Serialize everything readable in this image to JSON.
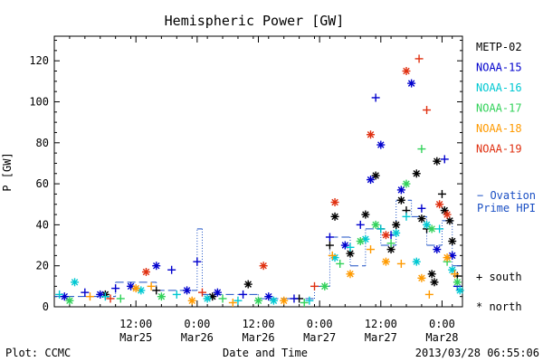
{
  "chart_data": {
    "type": "scatter",
    "title": "Hemispheric Power [GW]",
    "ylabel": "P [GW]",
    "xlabel": "Date and Time",
    "xlim": [
      "2013-03-24T20:00",
      "2013-03-28T04:00"
    ],
    "ylim": [
      0,
      132
    ],
    "yticks": [
      0,
      20,
      40,
      60,
      80,
      100,
      120
    ],
    "xticks": [
      {
        "t": "2013-03-25T12:00",
        "line1": "12:00",
        "line2": "Mar25"
      },
      {
        "t": "2013-03-26T00:00",
        "line1": "0:00",
        "line2": "Mar26"
      },
      {
        "t": "2013-03-26T12:00",
        "line1": "12:00",
        "line2": "Mar26"
      },
      {
        "t": "2013-03-27T00:00",
        "line1": "0:00",
        "line2": "Mar27"
      },
      {
        "t": "2013-03-27T12:00",
        "line1": "12:00",
        "line2": "Mar27"
      },
      {
        "t": "2013-03-28T00:00",
        "line1": "0:00",
        "line2": "Mar28"
      }
    ],
    "grid": false,
    "legend_position": "right",
    "legend_markers": {
      "south": "+ south",
      "north": "* north"
    },
    "ovation_legend": [
      "− Ovation",
      "Prime HPI"
    ],
    "footer_left": "Plot: CCMC",
    "footer_right": "2013/03/28 06:55:06",
    "series": [
      {
        "name": "METP-02",
        "color": "#000000",
        "points": [
          {
            "t": "2013-03-25T06:00",
            "v": 6,
            "m": "north"
          },
          {
            "t": "2013-03-25T16:00",
            "v": 8,
            "m": "south"
          },
          {
            "t": "2013-03-26T03:00",
            "v": 5,
            "m": "north"
          },
          {
            "t": "2013-03-26T10:00",
            "v": 11,
            "m": "north"
          },
          {
            "t": "2013-03-26T20:00",
            "v": 4,
            "m": "south"
          },
          {
            "t": "2013-03-27T02:00",
            "v": 30,
            "m": "south"
          },
          {
            "t": "2013-03-27T03:00",
            "v": 44,
            "m": "north"
          },
          {
            "t": "2013-03-27T06:00",
            "v": 26,
            "m": "north"
          },
          {
            "t": "2013-03-27T09:00",
            "v": 45,
            "m": "north"
          },
          {
            "t": "2013-03-27T11:00",
            "v": 64,
            "m": "north"
          },
          {
            "t": "2013-03-27T12:00",
            "v": 38,
            "m": "south"
          },
          {
            "t": "2013-03-27T14:00",
            "v": 28,
            "m": "north"
          },
          {
            "t": "2013-03-27T15:00",
            "v": 40,
            "m": "north"
          },
          {
            "t": "2013-03-27T16:00",
            "v": 52,
            "m": "north"
          },
          {
            "t": "2013-03-27T17:00",
            "v": 47,
            "m": "south"
          },
          {
            "t": "2013-03-27T19:00",
            "v": 65,
            "m": "north"
          },
          {
            "t": "2013-03-27T20:00",
            "v": 43,
            "m": "north"
          },
          {
            "t": "2013-03-27T21:00",
            "v": 38,
            "m": "south"
          },
          {
            "t": "2013-03-27T22:00",
            "v": 16,
            "m": "north"
          },
          {
            "t": "2013-03-27T22:30",
            "v": 12,
            "m": "north"
          },
          {
            "t": "2013-03-27T23:00",
            "v": 71,
            "m": "north"
          },
          {
            "t": "2013-03-28T00:00",
            "v": 55,
            "m": "south"
          },
          {
            "t": "2013-03-28T00:30",
            "v": 47,
            "m": "north"
          },
          {
            "t": "2013-03-28T01:30",
            "v": 42,
            "m": "north"
          },
          {
            "t": "2013-03-28T02:00",
            "v": 32,
            "m": "north"
          },
          {
            "t": "2013-03-28T03:00",
            "v": 15,
            "m": "south"
          }
        ]
      },
      {
        "name": "NOAA-15",
        "color": "#0000cd",
        "points": [
          {
            "t": "2013-03-24T22:00",
            "v": 5,
            "m": "north"
          },
          {
            "t": "2013-03-25T02:00",
            "v": 7,
            "m": "south"
          },
          {
            "t": "2013-03-25T05:00",
            "v": 6,
            "m": "north"
          },
          {
            "t": "2013-03-25T08:00",
            "v": 9,
            "m": "south"
          },
          {
            "t": "2013-03-25T11:00",
            "v": 10,
            "m": "north"
          },
          {
            "t": "2013-03-25T16:00",
            "v": 20,
            "m": "north"
          },
          {
            "t": "2013-03-25T19:00",
            "v": 18,
            "m": "south"
          },
          {
            "t": "2013-03-25T22:00",
            "v": 8,
            "m": "north"
          },
          {
            "t": "2013-03-26T00:00",
            "v": 22,
            "m": "south"
          },
          {
            "t": "2013-03-26T04:00",
            "v": 7,
            "m": "north"
          },
          {
            "t": "2013-03-26T09:00",
            "v": 6,
            "m": "south"
          },
          {
            "t": "2013-03-26T14:00",
            "v": 5,
            "m": "north"
          },
          {
            "t": "2013-03-26T19:00",
            "v": 4,
            "m": "south"
          },
          {
            "t": "2013-03-27T02:00",
            "v": 34,
            "m": "south"
          },
          {
            "t": "2013-03-27T05:00",
            "v": 30,
            "m": "north"
          },
          {
            "t": "2013-03-27T08:00",
            "v": 40,
            "m": "south"
          },
          {
            "t": "2013-03-27T10:00",
            "v": 62,
            "m": "north"
          },
          {
            "t": "2013-03-27T11:00",
            "v": 102,
            "m": "south"
          },
          {
            "t": "2013-03-27T12:00",
            "v": 79,
            "m": "north"
          },
          {
            "t": "2013-03-27T14:00",
            "v": 35,
            "m": "south"
          },
          {
            "t": "2013-03-27T16:00",
            "v": 57,
            "m": "north"
          },
          {
            "t": "2013-03-27T18:00",
            "v": 109,
            "m": "north"
          },
          {
            "t": "2013-03-27T20:00",
            "v": 48,
            "m": "south"
          },
          {
            "t": "2013-03-27T23:00",
            "v": 28,
            "m": "north"
          },
          {
            "t": "2013-03-28T00:30",
            "v": 72,
            "m": "south"
          },
          {
            "t": "2013-03-28T02:00",
            "v": 25,
            "m": "north"
          },
          {
            "t": "2013-03-28T03:00",
            "v": 10,
            "m": "south"
          }
        ]
      },
      {
        "name": "NOAA-16",
        "color": "#00c8d2",
        "points": [
          {
            "t": "2013-03-24T21:00",
            "v": 6,
            "m": "south"
          },
          {
            "t": "2013-03-25T00:00",
            "v": 12,
            "m": "north"
          },
          {
            "t": "2013-03-25T06:00",
            "v": 5,
            "m": "south"
          },
          {
            "t": "2013-03-25T13:00",
            "v": 8,
            "m": "north"
          },
          {
            "t": "2013-03-25T20:00",
            "v": 6,
            "m": "south"
          },
          {
            "t": "2013-03-26T02:00",
            "v": 4,
            "m": "north"
          },
          {
            "t": "2013-03-26T08:00",
            "v": 3,
            "m": "south"
          },
          {
            "t": "2013-03-26T15:00",
            "v": 3,
            "m": "north"
          },
          {
            "t": "2013-03-26T22:00",
            "v": 3,
            "m": "south"
          },
          {
            "t": "2013-03-27T03:00",
            "v": 24,
            "m": "north"
          },
          {
            "t": "2013-03-27T06:00",
            "v": 29,
            "m": "south"
          },
          {
            "t": "2013-03-27T09:00",
            "v": 33,
            "m": "north"
          },
          {
            "t": "2013-03-27T12:00",
            "v": 38,
            "m": "south"
          },
          {
            "t": "2013-03-27T15:00",
            "v": 36,
            "m": "north"
          },
          {
            "t": "2013-03-27T17:00",
            "v": 44,
            "m": "south"
          },
          {
            "t": "2013-03-27T19:00",
            "v": 22,
            "m": "north"
          },
          {
            "t": "2013-03-27T21:00",
            "v": 40,
            "m": "north"
          },
          {
            "t": "2013-03-27T23:30",
            "v": 38,
            "m": "south"
          },
          {
            "t": "2013-03-28T02:00",
            "v": 18,
            "m": "north"
          },
          {
            "t": "2013-03-28T03:30",
            "v": 8,
            "m": "north"
          }
        ]
      },
      {
        "name": "NOAA-17",
        "color": "#32d25a",
        "points": [
          {
            "t": "2013-03-24T23:00",
            "v": 3,
            "m": "north"
          },
          {
            "t": "2013-03-25T09:00",
            "v": 4,
            "m": "south"
          },
          {
            "t": "2013-03-25T17:00",
            "v": 5,
            "m": "north"
          },
          {
            "t": "2013-03-26T05:00",
            "v": 4,
            "m": "south"
          },
          {
            "t": "2013-03-26T12:00",
            "v": 3,
            "m": "north"
          },
          {
            "t": "2013-03-26T21:00",
            "v": 2,
            "m": "south"
          },
          {
            "t": "2013-03-27T01:00",
            "v": 10,
            "m": "north"
          },
          {
            "t": "2013-03-27T04:00",
            "v": 21,
            "m": "south"
          },
          {
            "t": "2013-03-27T08:00",
            "v": 32,
            "m": "north"
          },
          {
            "t": "2013-03-27T11:00",
            "v": 40,
            "m": "north"
          },
          {
            "t": "2013-03-27T14:00",
            "v": 31,
            "m": "south"
          },
          {
            "t": "2013-03-27T17:00",
            "v": 60,
            "m": "north"
          },
          {
            "t": "2013-03-27T20:00",
            "v": 77,
            "m": "south"
          },
          {
            "t": "2013-03-27T22:00",
            "v": 38,
            "m": "north"
          },
          {
            "t": "2013-03-28T01:00",
            "v": 22,
            "m": "south"
          },
          {
            "t": "2013-03-28T03:00",
            "v": 12,
            "m": "north"
          }
        ]
      },
      {
        "name": "NOAA-18",
        "color": "#ff9a00",
        "points": [
          {
            "t": "2013-03-25T03:00",
            "v": 5,
            "m": "south"
          },
          {
            "t": "2013-03-25T12:00",
            "v": 9,
            "m": "north"
          },
          {
            "t": "2013-03-25T15:00",
            "v": 10,
            "m": "south"
          },
          {
            "t": "2013-03-25T23:00",
            "v": 3,
            "m": "north"
          },
          {
            "t": "2013-03-26T07:00",
            "v": 2,
            "m": "south"
          },
          {
            "t": "2013-03-26T17:00",
            "v": 3,
            "m": "north"
          },
          {
            "t": "2013-03-27T02:30",
            "v": 25,
            "m": "south"
          },
          {
            "t": "2013-03-27T06:00",
            "v": 16,
            "m": "north"
          },
          {
            "t": "2013-03-27T10:00",
            "v": 28,
            "m": "south"
          },
          {
            "t": "2013-03-27T13:00",
            "v": 22,
            "m": "north"
          },
          {
            "t": "2013-03-27T16:00",
            "v": 21,
            "m": "south"
          },
          {
            "t": "2013-03-27T20:00",
            "v": 14,
            "m": "north"
          },
          {
            "t": "2013-03-27T21:30",
            "v": 6,
            "m": "south"
          },
          {
            "t": "2013-03-28T01:00",
            "v": 24,
            "m": "north"
          },
          {
            "t": "2013-03-28T02:30",
            "v": 16,
            "m": "south"
          }
        ]
      },
      {
        "name": "NOAA-19",
        "color": "#e03010",
        "points": [
          {
            "t": "2013-03-25T07:00",
            "v": 4,
            "m": "south"
          },
          {
            "t": "2013-03-25T14:00",
            "v": 17,
            "m": "north"
          },
          {
            "t": "2013-03-26T01:00",
            "v": 7,
            "m": "south"
          },
          {
            "t": "2013-03-26T13:00",
            "v": 20,
            "m": "north"
          },
          {
            "t": "2013-03-26T23:00",
            "v": 10,
            "m": "south"
          },
          {
            "t": "2013-03-27T03:00",
            "v": 51,
            "m": "north"
          },
          {
            "t": "2013-03-27T10:00",
            "v": 84,
            "m": "north"
          },
          {
            "t": "2013-03-27T13:00",
            "v": 35,
            "m": "north"
          },
          {
            "t": "2013-03-27T17:00",
            "v": 115,
            "m": "north"
          },
          {
            "t": "2013-03-27T19:30",
            "v": 121,
            "m": "south"
          },
          {
            "t": "2013-03-27T21:00",
            "v": 96,
            "m": "south"
          },
          {
            "t": "2013-03-27T23:30",
            "v": 50,
            "m": "north"
          },
          {
            "t": "2013-03-28T01:00",
            "v": 45,
            "m": "north"
          }
        ]
      }
    ],
    "ovation_steps": [
      {
        "t0": "2013-03-24T20:00",
        "t1": "2013-03-25T08:00",
        "v": 5
      },
      {
        "t0": "2013-03-25T08:00",
        "t1": "2013-03-25T16:00",
        "v": 12
      },
      {
        "t0": "2013-03-25T16:00",
        "t1": "2013-03-26T00:00",
        "v": 8
      },
      {
        "t0": "2013-03-26T00:00",
        "t1": "2013-03-26T01:00",
        "v": 38
      },
      {
        "t0": "2013-03-26T01:00",
        "t1": "2013-03-26T12:00",
        "v": 6
      },
      {
        "t0": "2013-03-26T12:00",
        "t1": "2013-03-26T23:00",
        "v": 4
      },
      {
        "t0": "2013-03-26T23:00",
        "t1": "2013-03-27T02:00",
        "v": 10
      },
      {
        "t0": "2013-03-27T02:00",
        "t1": "2013-03-27T06:00",
        "v": 34
      },
      {
        "t0": "2013-03-27T06:00",
        "t1": "2013-03-27T09:00",
        "v": 20
      },
      {
        "t0": "2013-03-27T09:00",
        "t1": "2013-03-27T12:00",
        "v": 38
      },
      {
        "t0": "2013-03-27T12:00",
        "t1": "2013-03-27T15:00",
        "v": 30
      },
      {
        "t0": "2013-03-27T15:00",
        "t1": "2013-03-27T18:00",
        "v": 52
      },
      {
        "t0": "2013-03-27T18:00",
        "t1": "2013-03-27T21:00",
        "v": 44
      },
      {
        "t0": "2013-03-27T21:00",
        "t1": "2013-03-28T00:00",
        "v": 30
      },
      {
        "t0": "2013-03-28T00:00",
        "t1": "2013-03-28T02:00",
        "v": 42
      },
      {
        "t0": "2013-03-28T02:00",
        "t1": "2013-03-28T04:00",
        "v": 20
      }
    ]
  }
}
